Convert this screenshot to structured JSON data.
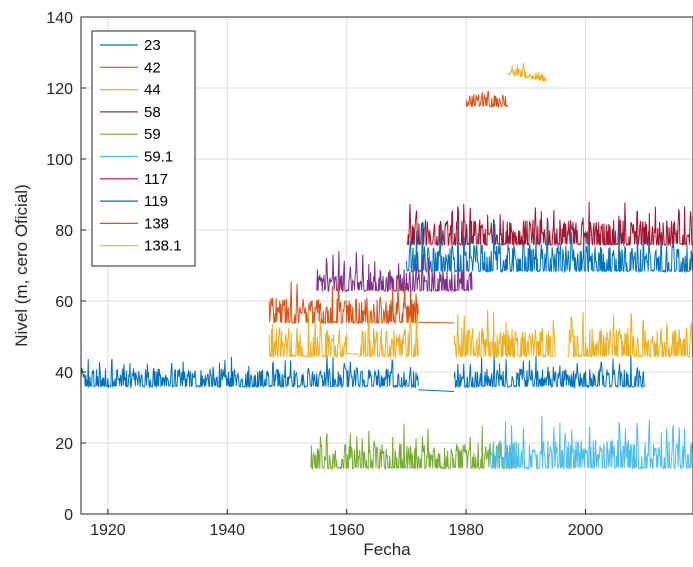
{
  "chart_data": {
    "type": "line",
    "xlabel": "Fecha",
    "ylabel": "Nivel (m, cero Oficial)",
    "xlim": [
      1915.5,
      2018
    ],
    "ylim": [
      0,
      140
    ],
    "x_ticks": [
      1920,
      1940,
      1960,
      1980,
      2000
    ],
    "y_ticks": [
      0,
      20,
      40,
      60,
      80,
      100,
      120,
      140
    ],
    "grid": true,
    "legend_position": "top-left",
    "series": [
      {
        "name": "23",
        "color": "#0072BD",
        "segments": [
          [
            1915.5,
            1972
          ],
          [
            1978,
            2010
          ]
        ],
        "baseline": 36,
        "amplitude": 5,
        "bridge": {
          "from": [
            1972,
            35
          ],
          "to": [
            1978,
            34.5
          ]
        }
      },
      {
        "name": "42",
        "color": "#D95319",
        "segments": [
          [
            1980,
            1987
          ]
        ],
        "baseline": 115,
        "amplitude": 3.5
      },
      {
        "name": "44",
        "color": "#EDB120",
        "segments": [
          [
            1987,
            1993.5
          ]
        ],
        "baseline": 124,
        "amplitude": 2,
        "trend": -2
      },
      {
        "name": "58",
        "color": "#7E2F8E",
        "segments": [
          [
            1955,
            1981
          ]
        ],
        "baseline": 63,
        "amplitude": 6
      },
      {
        "name": "59",
        "color": "#77AC30",
        "segments": [
          [
            1954,
            1988
          ]
        ],
        "baseline": 13,
        "amplitude": 7
      },
      {
        "name": "59.1",
        "color": "#4DBEEE",
        "segments": [
          [
            1984,
            2018
          ]
        ],
        "baseline": 13,
        "amplitude": 8
      },
      {
        "name": "117",
        "color": "#A2142F",
        "segments": [
          [
            1970,
            2018
          ]
        ],
        "baseline": 76,
        "amplitude": 7
      },
      {
        "name": "119",
        "color": "#0072BD",
        "segments": [
          [
            1970,
            2018
          ]
        ],
        "baseline": 68.5,
        "amplitude": 7.5
      },
      {
        "name": "138",
        "color": "#D95319",
        "segments": [
          [
            1947,
            1972
          ]
        ],
        "baseline": 54,
        "amplitude": 7,
        "bridge": {
          "from": [
            1972,
            54
          ],
          "to": [
            1978,
            53.8
          ]
        }
      },
      {
        "name": "138.1",
        "color": "#EDB120",
        "segments": [
          [
            1947,
            1960
          ],
          [
            1962,
            1972
          ],
          [
            1978,
            1995
          ],
          [
            1997,
            2018
          ]
        ],
        "baseline": 44.5,
        "amplitude": 8,
        "bridge": {
          "from": [
            1960,
            45.2
          ],
          "to": [
            1962,
            45
          ]
        }
      }
    ]
  }
}
